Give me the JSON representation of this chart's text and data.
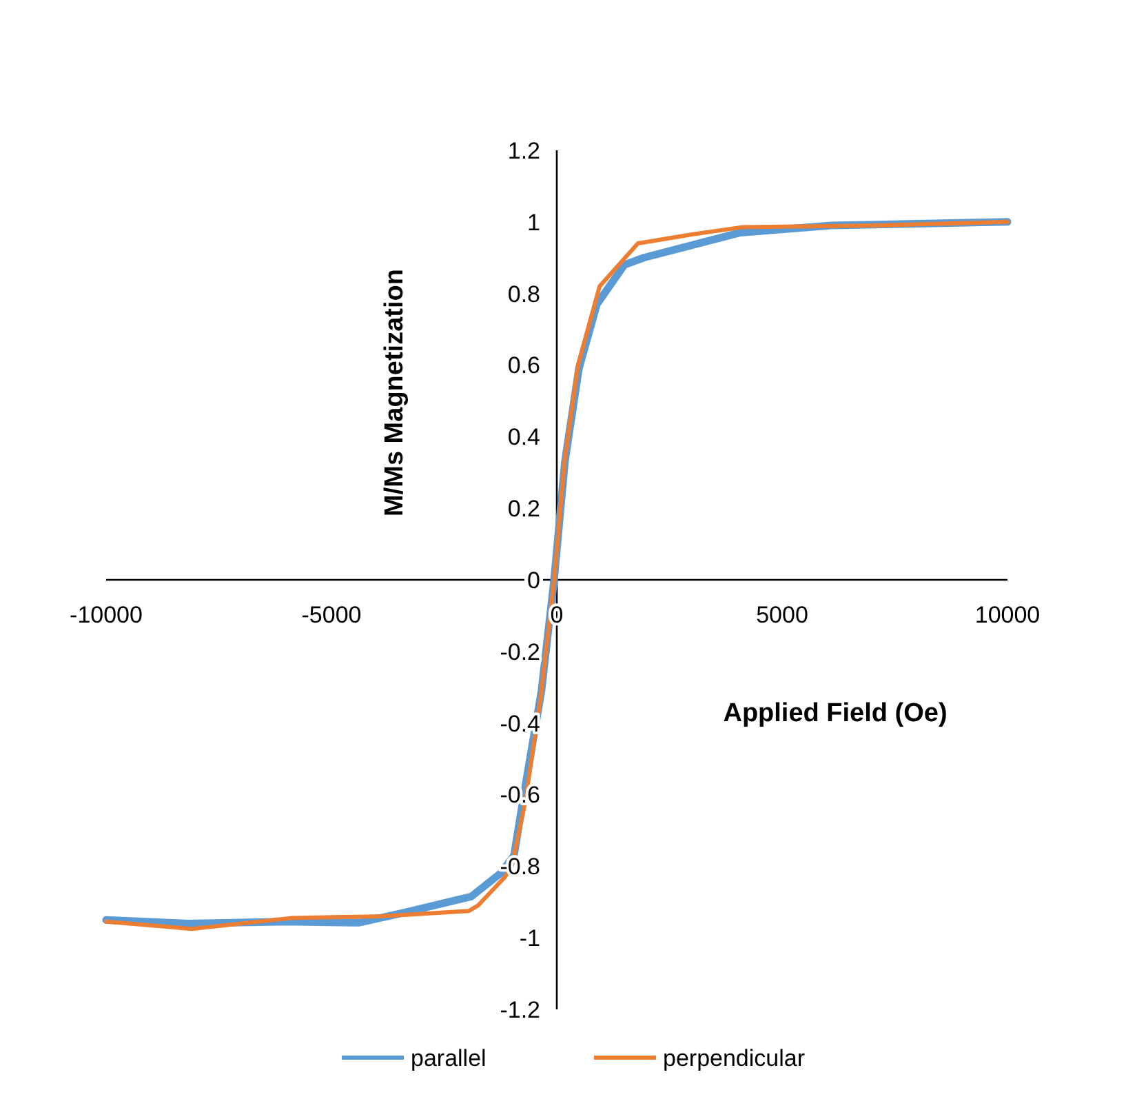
{
  "chart_data": {
    "type": "line",
    "xlabel": "Applied Field (Oe)",
    "ylabel": "M/Ms Magnetization",
    "xlim": [
      -10000,
      10000
    ],
    "xticks": [
      -10000,
      -5000,
      0,
      5000,
      10000
    ],
    "ylim": [
      -1.2,
      1.2
    ],
    "yticks": [
      -1.2,
      -1,
      -0.8,
      -0.6,
      -0.4,
      -0.2,
      0,
      0.2,
      0.4,
      0.6,
      0.8,
      1,
      1.2
    ],
    "grid": false,
    "legend": "bottom",
    "marker": "none",
    "line_style": "solid",
    "series": [
      {
        "name": "parallel",
        "color": "#5b9bd5",
        "x": [
          -10000,
          -8200,
          -6000,
          -4400,
          -3400,
          -1900,
          -1250,
          -950,
          -730,
          -340,
          -60,
          180,
          490,
          890,
          1500,
          1930,
          4070,
          6090,
          8000,
          10000
        ],
        "values": [
          -0.95,
          -0.96,
          -0.955,
          -0.958,
          -0.93,
          -0.885,
          -0.82,
          -0.77,
          -0.6,
          -0.31,
          0,
          0.33,
          0.59,
          0.77,
          0.88,
          0.9,
          0.97,
          0.99,
          0.995,
          1
        ]
      },
      {
        "name": "perpendicular",
        "color": "#ed7d31",
        "x": [
          -10000,
          -8100,
          -5900,
          -3900,
          -1950,
          -1750,
          -1150,
          -1000,
          -700,
          -350,
          -60,
          170,
          470,
          950,
          1800,
          3000,
          4100,
          7100,
          10000
        ],
        "values": [
          -0.955,
          -0.975,
          -0.945,
          -0.94,
          -0.925,
          -0.91,
          -0.83,
          -0.8,
          -0.62,
          -0.32,
          0,
          0.33,
          0.6,
          0.82,
          0.94,
          0.965,
          0.985,
          0.99,
          1
        ]
      }
    ]
  }
}
